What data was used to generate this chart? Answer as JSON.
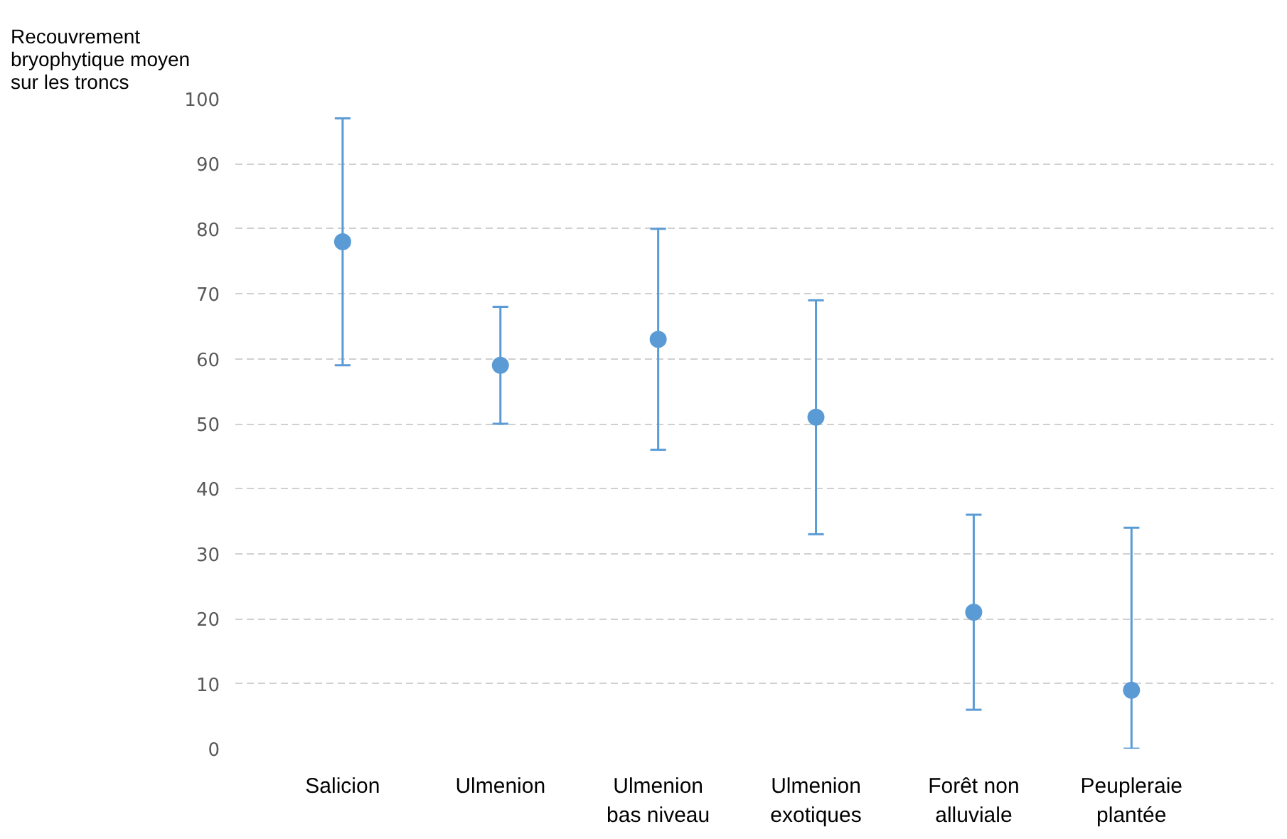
{
  "chart_data": {
    "type": "scatter",
    "ylabel": "Recouvrement bryophytique moyen sur les troncs",
    "categories": [
      "Salicion",
      "Ulmenion",
      "Ulmenion bas niveau",
      "Ulmenion exotiques",
      "Forêt non alluviale",
      "Peupleraie plantée"
    ],
    "series": [
      {
        "color": "#5b9bd5",
        "values": [
          78,
          59,
          63,
          51,
          21,
          9
        ],
        "errors": [
          [
            59,
            97
          ],
          [
            50,
            68
          ],
          [
            46,
            80
          ],
          [
            33,
            69
          ],
          [
            6,
            36
          ],
          [
            0,
            34
          ]
        ]
      }
    ],
    "ylim": [
      0,
      100
    ],
    "yticks": [
      0,
      10,
      20,
      30,
      40,
      50,
      60,
      70,
      80,
      90,
      100
    ],
    "grid": "y",
    "marker": "circle"
  }
}
